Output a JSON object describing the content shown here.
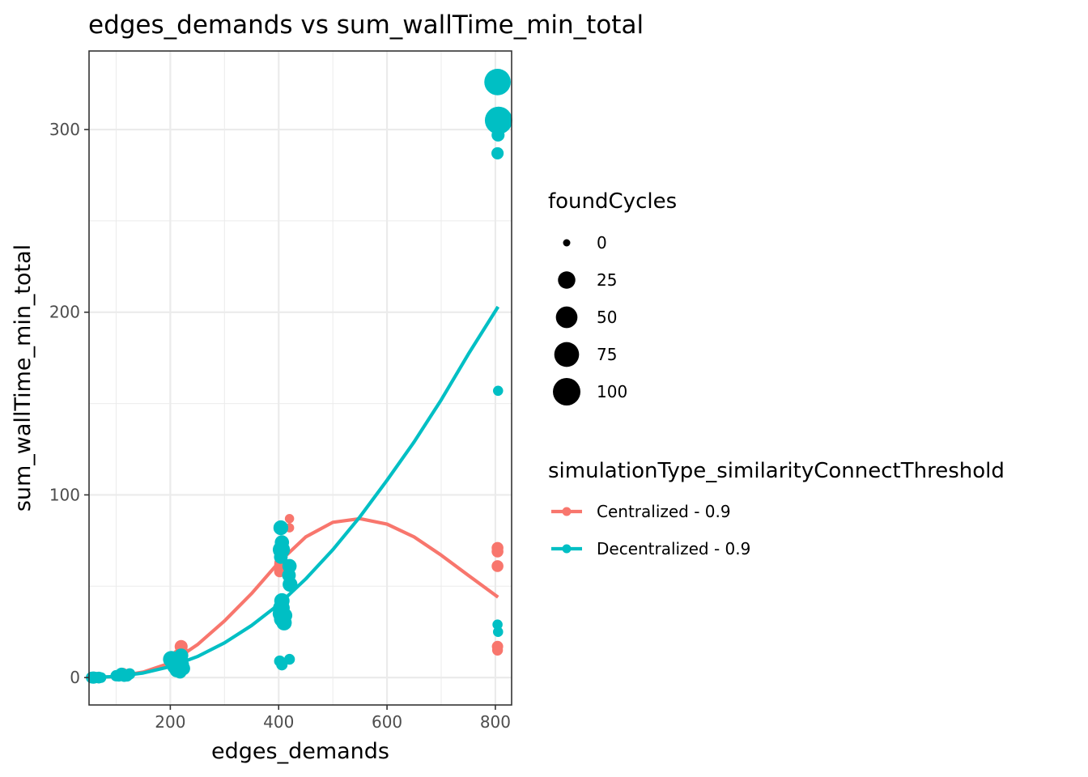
{
  "chart_data": {
    "type": "scatter",
    "title": "edges_demands  vs  sum_wallTime_min_total",
    "xlabel": "edges_demands",
    "ylabel": "sum_wallTime_min_total",
    "xlim": [
      50,
      830
    ],
    "ylim": [
      -15,
      343
    ],
    "x_ticks": [
      200,
      400,
      600,
      800
    ],
    "y_ticks": [
      0,
      100,
      200,
      300
    ],
    "grid": true,
    "legend_position": "right",
    "size_legend": {
      "title": "foundCycles",
      "entries": [
        {
          "label": "0",
          "value": 0
        },
        {
          "label": "25",
          "value": 25
        },
        {
          "label": "50",
          "value": 50
        },
        {
          "label": "75",
          "value": 75
        },
        {
          "label": "100",
          "value": 100
        }
      ]
    },
    "color_legend": {
      "title": "simulationType_similarityConnectThreshold"
    },
    "series": [
      {
        "name": "Centralized - 0.9",
        "color": "#F8766D",
        "points": [
          {
            "x": 60,
            "y": 0,
            "size": 5
          },
          {
            "x": 65,
            "y": 0,
            "size": 3
          },
          {
            "x": 70,
            "y": 0,
            "size": 2
          },
          {
            "x": 105,
            "y": 1,
            "size": 4
          },
          {
            "x": 112,
            "y": 2,
            "size": 6
          },
          {
            "x": 120,
            "y": 1,
            "size": 3
          },
          {
            "x": 205,
            "y": 8,
            "size": 10
          },
          {
            "x": 210,
            "y": 10,
            "size": 12
          },
          {
            "x": 215,
            "y": 12,
            "size": 8
          },
          {
            "x": 220,
            "y": 17,
            "size": 8
          },
          {
            "x": 222,
            "y": 14,
            "size": 6
          },
          {
            "x": 218,
            "y": 6,
            "size": 5
          },
          {
            "x": 402,
            "y": 58,
            "size": 4
          },
          {
            "x": 404,
            "y": 60,
            "size": 5
          },
          {
            "x": 403,
            "y": 62,
            "size": 6
          },
          {
            "x": 405,
            "y": 65,
            "size": 4
          },
          {
            "x": 402,
            "y": 68,
            "size": 3
          },
          {
            "x": 406,
            "y": 70,
            "size": 3
          },
          {
            "x": 404,
            "y": 72,
            "size": 2
          },
          {
            "x": 403,
            "y": 63,
            "size": 5
          },
          {
            "x": 420,
            "y": 87,
            "size": 1
          },
          {
            "x": 420,
            "y": 82,
            "size": 1
          },
          {
            "x": 418,
            "y": 56,
            "size": 2
          },
          {
            "x": 804,
            "y": 71,
            "size": 5
          },
          {
            "x": 804,
            "y": 69,
            "size": 5
          },
          {
            "x": 804,
            "y": 61,
            "size": 5
          },
          {
            "x": 804,
            "y": 17,
            "size": 4
          },
          {
            "x": 804,
            "y": 15,
            "size": 3
          }
        ],
        "fit": {
          "x": [
            55,
            100,
            150,
            200,
            250,
            300,
            350,
            400,
            450,
            500,
            550,
            600,
            650,
            700,
            750,
            805
          ],
          "y": [
            0,
            0.5,
            3,
            8,
            18,
            31,
            46,
            63,
            77,
            85,
            87,
            84,
            77,
            67,
            56,
            44
          ]
        }
      },
      {
        "name": "Decentralized - 0.9",
        "color": "#00BFC4",
        "points": [
          {
            "x": 55,
            "y": 0,
            "size": 5
          },
          {
            "x": 58,
            "y": 0,
            "size": 6
          },
          {
            "x": 62,
            "y": 0,
            "size": 4
          },
          {
            "x": 68,
            "y": 0,
            "size": 5
          },
          {
            "x": 72,
            "y": 0,
            "size": 3
          },
          {
            "x": 100,
            "y": 1,
            "size": 4
          },
          {
            "x": 105,
            "y": 1,
            "size": 5
          },
          {
            "x": 110,
            "y": 2,
            "size": 7
          },
          {
            "x": 115,
            "y": 1,
            "size": 6
          },
          {
            "x": 120,
            "y": 1,
            "size": 5
          },
          {
            "x": 125,
            "y": 2,
            "size": 4
          },
          {
            "x": 202,
            "y": 10,
            "size": 22
          },
          {
            "x": 205,
            "y": 8,
            "size": 16
          },
          {
            "x": 208,
            "y": 6,
            "size": 14
          },
          {
            "x": 212,
            "y": 4,
            "size": 12
          },
          {
            "x": 216,
            "y": 9,
            "size": 14
          },
          {
            "x": 220,
            "y": 12,
            "size": 12
          },
          {
            "x": 222,
            "y": 7,
            "size": 10
          },
          {
            "x": 218,
            "y": 3,
            "size": 8
          },
          {
            "x": 224,
            "y": 5,
            "size": 10
          },
          {
            "x": 404,
            "y": 82,
            "size": 14
          },
          {
            "x": 406,
            "y": 74,
            "size": 12
          },
          {
            "x": 405,
            "y": 70,
            "size": 24
          },
          {
            "x": 404,
            "y": 66,
            "size": 10
          },
          {
            "x": 406,
            "y": 42,
            "size": 16
          },
          {
            "x": 405,
            "y": 38,
            "size": 22
          },
          {
            "x": 404,
            "y": 35,
            "size": 20
          },
          {
            "x": 406,
            "y": 32,
            "size": 18
          },
          {
            "x": 410,
            "y": 30,
            "size": 16
          },
          {
            "x": 412,
            "y": 34,
            "size": 12
          },
          {
            "x": 402,
            "y": 9,
            "size": 4
          },
          {
            "x": 406,
            "y": 7,
            "size": 4
          },
          {
            "x": 420,
            "y": 61,
            "size": 12
          },
          {
            "x": 421,
            "y": 51,
            "size": 14
          },
          {
            "x": 419,
            "y": 56,
            "size": 10
          },
          {
            "x": 420,
            "y": 10,
            "size": 3
          },
          {
            "x": 804,
            "y": 326,
            "size": 90
          },
          {
            "x": 806,
            "y": 305,
            "size": 100
          },
          {
            "x": 805,
            "y": 297,
            "size": 8
          },
          {
            "x": 804,
            "y": 287,
            "size": 6
          },
          {
            "x": 805,
            "y": 157,
            "size": 2
          },
          {
            "x": 804,
            "y": 29,
            "size": 2
          },
          {
            "x": 805,
            "y": 25,
            "size": 2
          }
        ],
        "fit": {
          "x": [
            55,
            100,
            150,
            200,
            250,
            300,
            350,
            400,
            450,
            500,
            550,
            600,
            650,
            700,
            750,
            805
          ],
          "y": [
            0,
            0.6,
            2.5,
            6,
            11.5,
            19,
            28.5,
            40,
            54,
            70,
            88,
            108,
            129,
            152,
            177,
            203
          ]
        }
      }
    ]
  }
}
